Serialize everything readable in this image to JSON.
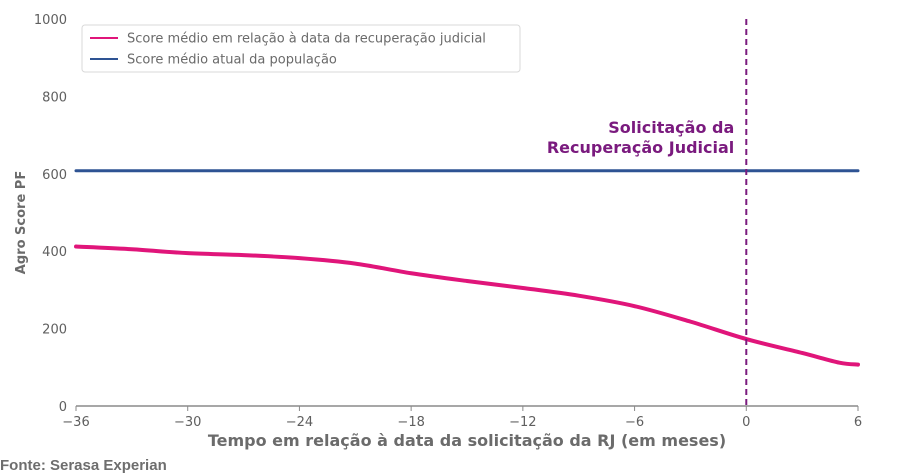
{
  "chart_data": {
    "type": "line",
    "xlabel": "Tempo em relação à data da solicitação da RJ (em meses)",
    "ylabel": "Agro Score PF",
    "xlim": [
      -36,
      6
    ],
    "ylim": [
      0,
      1000
    ],
    "xticks": [
      -36,
      -30,
      -24,
      -18,
      -12,
      -6,
      0,
      6
    ],
    "xtick_labels": [
      "−36",
      "−30",
      "−24",
      "−18",
      "−12",
      "−6",
      "0",
      "6"
    ],
    "yticks": [
      0,
      200,
      400,
      600,
      800,
      1000
    ],
    "ytick_labels": [
      "0",
      "200",
      "400",
      "600",
      "800",
      "1000"
    ],
    "legend_position": "top-left",
    "grid": false,
    "series": [
      {
        "name": "Score médio em relação à data da recuperação judicial",
        "color": "#e0157a",
        "x": [
          -36,
          -33,
          -30,
          -27,
          -24,
          -21,
          -18,
          -15,
          -12,
          -9,
          -6,
          -3,
          0,
          3,
          5,
          6
        ],
        "y": [
          412,
          405,
          395,
          390,
          382,
          368,
          343,
          323,
          305,
          285,
          258,
          218,
          173,
          137,
          112,
          107
        ]
      },
      {
        "name": "Score médio atual da população",
        "color": "#2e5393",
        "x": [
          -36,
          6
        ],
        "y": [
          608,
          608
        ]
      }
    ],
    "vline": {
      "x": 0,
      "color": "#7a1a7e",
      "style": "dashed"
    },
    "annotation": {
      "lines": [
        "Solicitação da",
        "Recuperação Judicial"
      ],
      "x": 0,
      "y": 700,
      "color": "#7a1a7e"
    }
  },
  "source": "Fonte: Serasa Experian"
}
